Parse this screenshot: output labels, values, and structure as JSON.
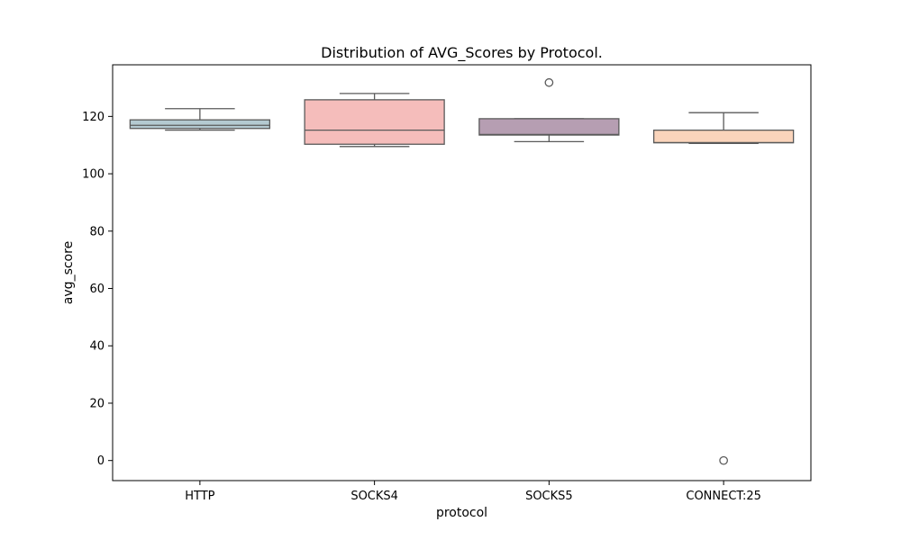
{
  "chart_data": {
    "type": "box",
    "title": "Distribution of AVG_Scores by Protocol.",
    "xlabel": "protocol",
    "ylabel": "avg_score",
    "ylim": [
      -7,
      138
    ],
    "yticks": [
      0,
      20,
      40,
      60,
      80,
      100,
      120
    ],
    "grid": false,
    "categories": [
      "HTTP",
      "SOCKS4",
      "SOCKS5",
      "CONNECT:25"
    ],
    "boxes": [
      {
        "category": "HTTP",
        "whisker_low": 115.2,
        "q1": 115.8,
        "median": 116.9,
        "q3": 118.8,
        "whisker_high": 122.7,
        "outliers": [],
        "color": "#b4cad1"
      },
      {
        "category": "SOCKS4",
        "whisker_low": 109.5,
        "q1": 110.3,
        "median": 115.2,
        "q3": 125.8,
        "whisker_high": 128.0,
        "outliers": [],
        "color": "#f5bdbb"
      },
      {
        "category": "SOCKS5",
        "whisker_low": 111.2,
        "q1": 113.5,
        "median": 113.7,
        "q3": 119.2,
        "whisker_high": 119.2,
        "outliers": [
          131.8
        ],
        "color": "#b69eb2"
      },
      {
        "category": "CONNECT:25",
        "whisker_low": 110.6,
        "q1": 110.8,
        "median": 110.9,
        "q3": 115.2,
        "whisker_high": 121.3,
        "outliers": [
          0.0
        ],
        "color": "#fad4bb"
      }
    ]
  }
}
